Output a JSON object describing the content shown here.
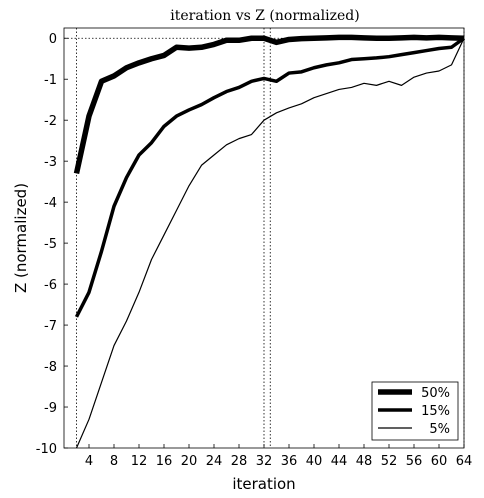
{
  "chart_data": {
    "type": "line",
    "title": "iteration vs Z (normalized)",
    "xlabel": "iteration",
    "ylabel": "Z (normalized)",
    "xlim": [
      0,
      64
    ],
    "ylim": [
      -10,
      0.25
    ],
    "xticks": [
      4,
      8,
      12,
      16,
      20,
      24,
      28,
      32,
      36,
      40,
      44,
      48,
      52,
      56,
      60,
      64
    ],
    "yticks": [
      0,
      -1,
      -2,
      -3,
      -4,
      -5,
      -6,
      -7,
      -8,
      -9,
      -10
    ],
    "grid": false,
    "legend_position": "bottom-right",
    "reference_lines": {
      "horizontal_dotted_y": 0,
      "vertical_dotted_x": [
        2,
        32,
        33,
        64
      ]
    },
    "series": [
      {
        "name": "50%",
        "stroke": "thick",
        "color": "#000000",
        "x": [
          2,
          4,
          6,
          8,
          10,
          12,
          14,
          16,
          18,
          20,
          22,
          24,
          26,
          28,
          30,
          32,
          34,
          36,
          38,
          40,
          42,
          44,
          46,
          48,
          50,
          52,
          54,
          56,
          58,
          60,
          62,
          64
        ],
        "values": [
          -3.3,
          -1.9,
          -1.05,
          -0.92,
          -0.72,
          -0.6,
          -0.5,
          -0.42,
          -0.22,
          -0.24,
          -0.22,
          -0.15,
          -0.05,
          -0.05,
          0.0,
          0.0,
          -0.1,
          -0.03,
          -0.01,
          0.0,
          0.01,
          0.02,
          0.02,
          0.01,
          0.0,
          0.0,
          0.01,
          0.02,
          0.01,
          0.02,
          0.01,
          0.0
        ]
      },
      {
        "name": "15%",
        "stroke": "medium",
        "color": "#000000",
        "x": [
          2,
          4,
          6,
          8,
          10,
          12,
          14,
          16,
          18,
          20,
          22,
          24,
          26,
          28,
          30,
          32,
          34,
          36,
          38,
          40,
          42,
          44,
          46,
          48,
          50,
          52,
          54,
          56,
          58,
          60,
          62,
          64
        ],
        "values": [
          -6.8,
          -6.2,
          -5.2,
          -4.1,
          -3.4,
          -2.85,
          -2.55,
          -2.15,
          -1.9,
          -1.75,
          -1.62,
          -1.45,
          -1.3,
          -1.2,
          -1.05,
          -0.98,
          -1.05,
          -0.85,
          -0.82,
          -0.72,
          -0.65,
          -0.6,
          -0.52,
          -0.5,
          -0.48,
          -0.45,
          -0.4,
          -0.35,
          -0.3,
          -0.25,
          -0.22,
          0.0
        ]
      },
      {
        "name": "5%",
        "stroke": "thin",
        "color": "#000000",
        "x": [
          2,
          4,
          6,
          8,
          10,
          12,
          14,
          16,
          18,
          20,
          22,
          24,
          26,
          28,
          30,
          32,
          34,
          36,
          38,
          40,
          42,
          44,
          46,
          48,
          50,
          52,
          54,
          56,
          58,
          60,
          62,
          64
        ],
        "values": [
          -10.0,
          -9.3,
          -8.4,
          -7.5,
          -6.9,
          -6.2,
          -5.4,
          -4.8,
          -4.2,
          -3.6,
          -3.1,
          -2.85,
          -2.6,
          -2.45,
          -2.35,
          -2.0,
          -1.82,
          -1.7,
          -1.6,
          -1.45,
          -1.35,
          -1.25,
          -1.2,
          -1.1,
          -1.15,
          -1.05,
          -1.15,
          -0.95,
          -0.85,
          -0.8,
          -0.65,
          0.0
        ]
      }
    ]
  }
}
